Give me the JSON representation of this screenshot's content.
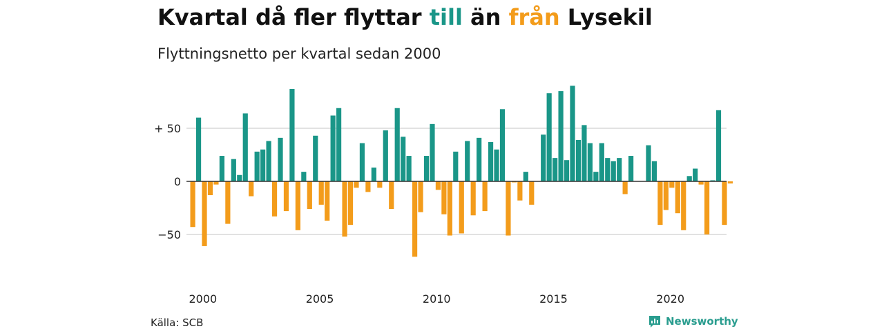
{
  "header": {
    "title_parts": [
      "Kvartal då fler flyttar ",
      "till",
      " än ",
      "från",
      " Lysekil"
    ],
    "subtitle": "Flyttningsnetto per kvartal sedan 2000"
  },
  "footer": {
    "source": "Källa: SCB",
    "brand": "Newsworthy",
    "brand_icon": "newsworthy-logo-icon"
  },
  "colors": {
    "positive": "#1a9688",
    "negative": "#f39c1b",
    "grid": "#d9d9d9",
    "zero_line": "#333333"
  },
  "chart_data": {
    "type": "bar",
    "x_start": "2000 Q1",
    "x_tick_labels": [
      "2000",
      "2005",
      "2010",
      "2015",
      "2020"
    ],
    "y_tick_labels": [
      "+ 50",
      "0",
      "−50"
    ],
    "y_ticks": [
      50,
      0,
      -50
    ],
    "ylim": [
      -90,
      90
    ],
    "grid": true,
    "values": [
      -43,
      60,
      -61,
      -13,
      -3,
      24,
      -40,
      21,
      6,
      64,
      -14,
      28,
      30,
      38,
      -33,
      41,
      -28,
      87,
      -46,
      9,
      -26,
      43,
      -22,
      -37,
      62,
      69,
      -52,
      -41,
      -6,
      36,
      -10,
      13,
      -6,
      48,
      -26,
      69,
      42,
      24,
      -71,
      -29,
      24,
      54,
      -8,
      -31,
      -51,
      28,
      -49,
      38,
      -32,
      41,
      -28,
      37,
      30,
      68,
      -51,
      -1,
      -18,
      9,
      -22,
      0,
      44,
      83,
      22,
      85,
      20,
      90,
      39,
      53,
      36,
      9,
      36,
      22,
      19,
      22,
      -12,
      24,
      0,
      0,
      34,
      19,
      -41,
      -27,
      -6,
      -30,
      -46,
      5,
      12,
      -3,
      -50,
      1,
      67,
      -41,
      -2
    ]
  }
}
